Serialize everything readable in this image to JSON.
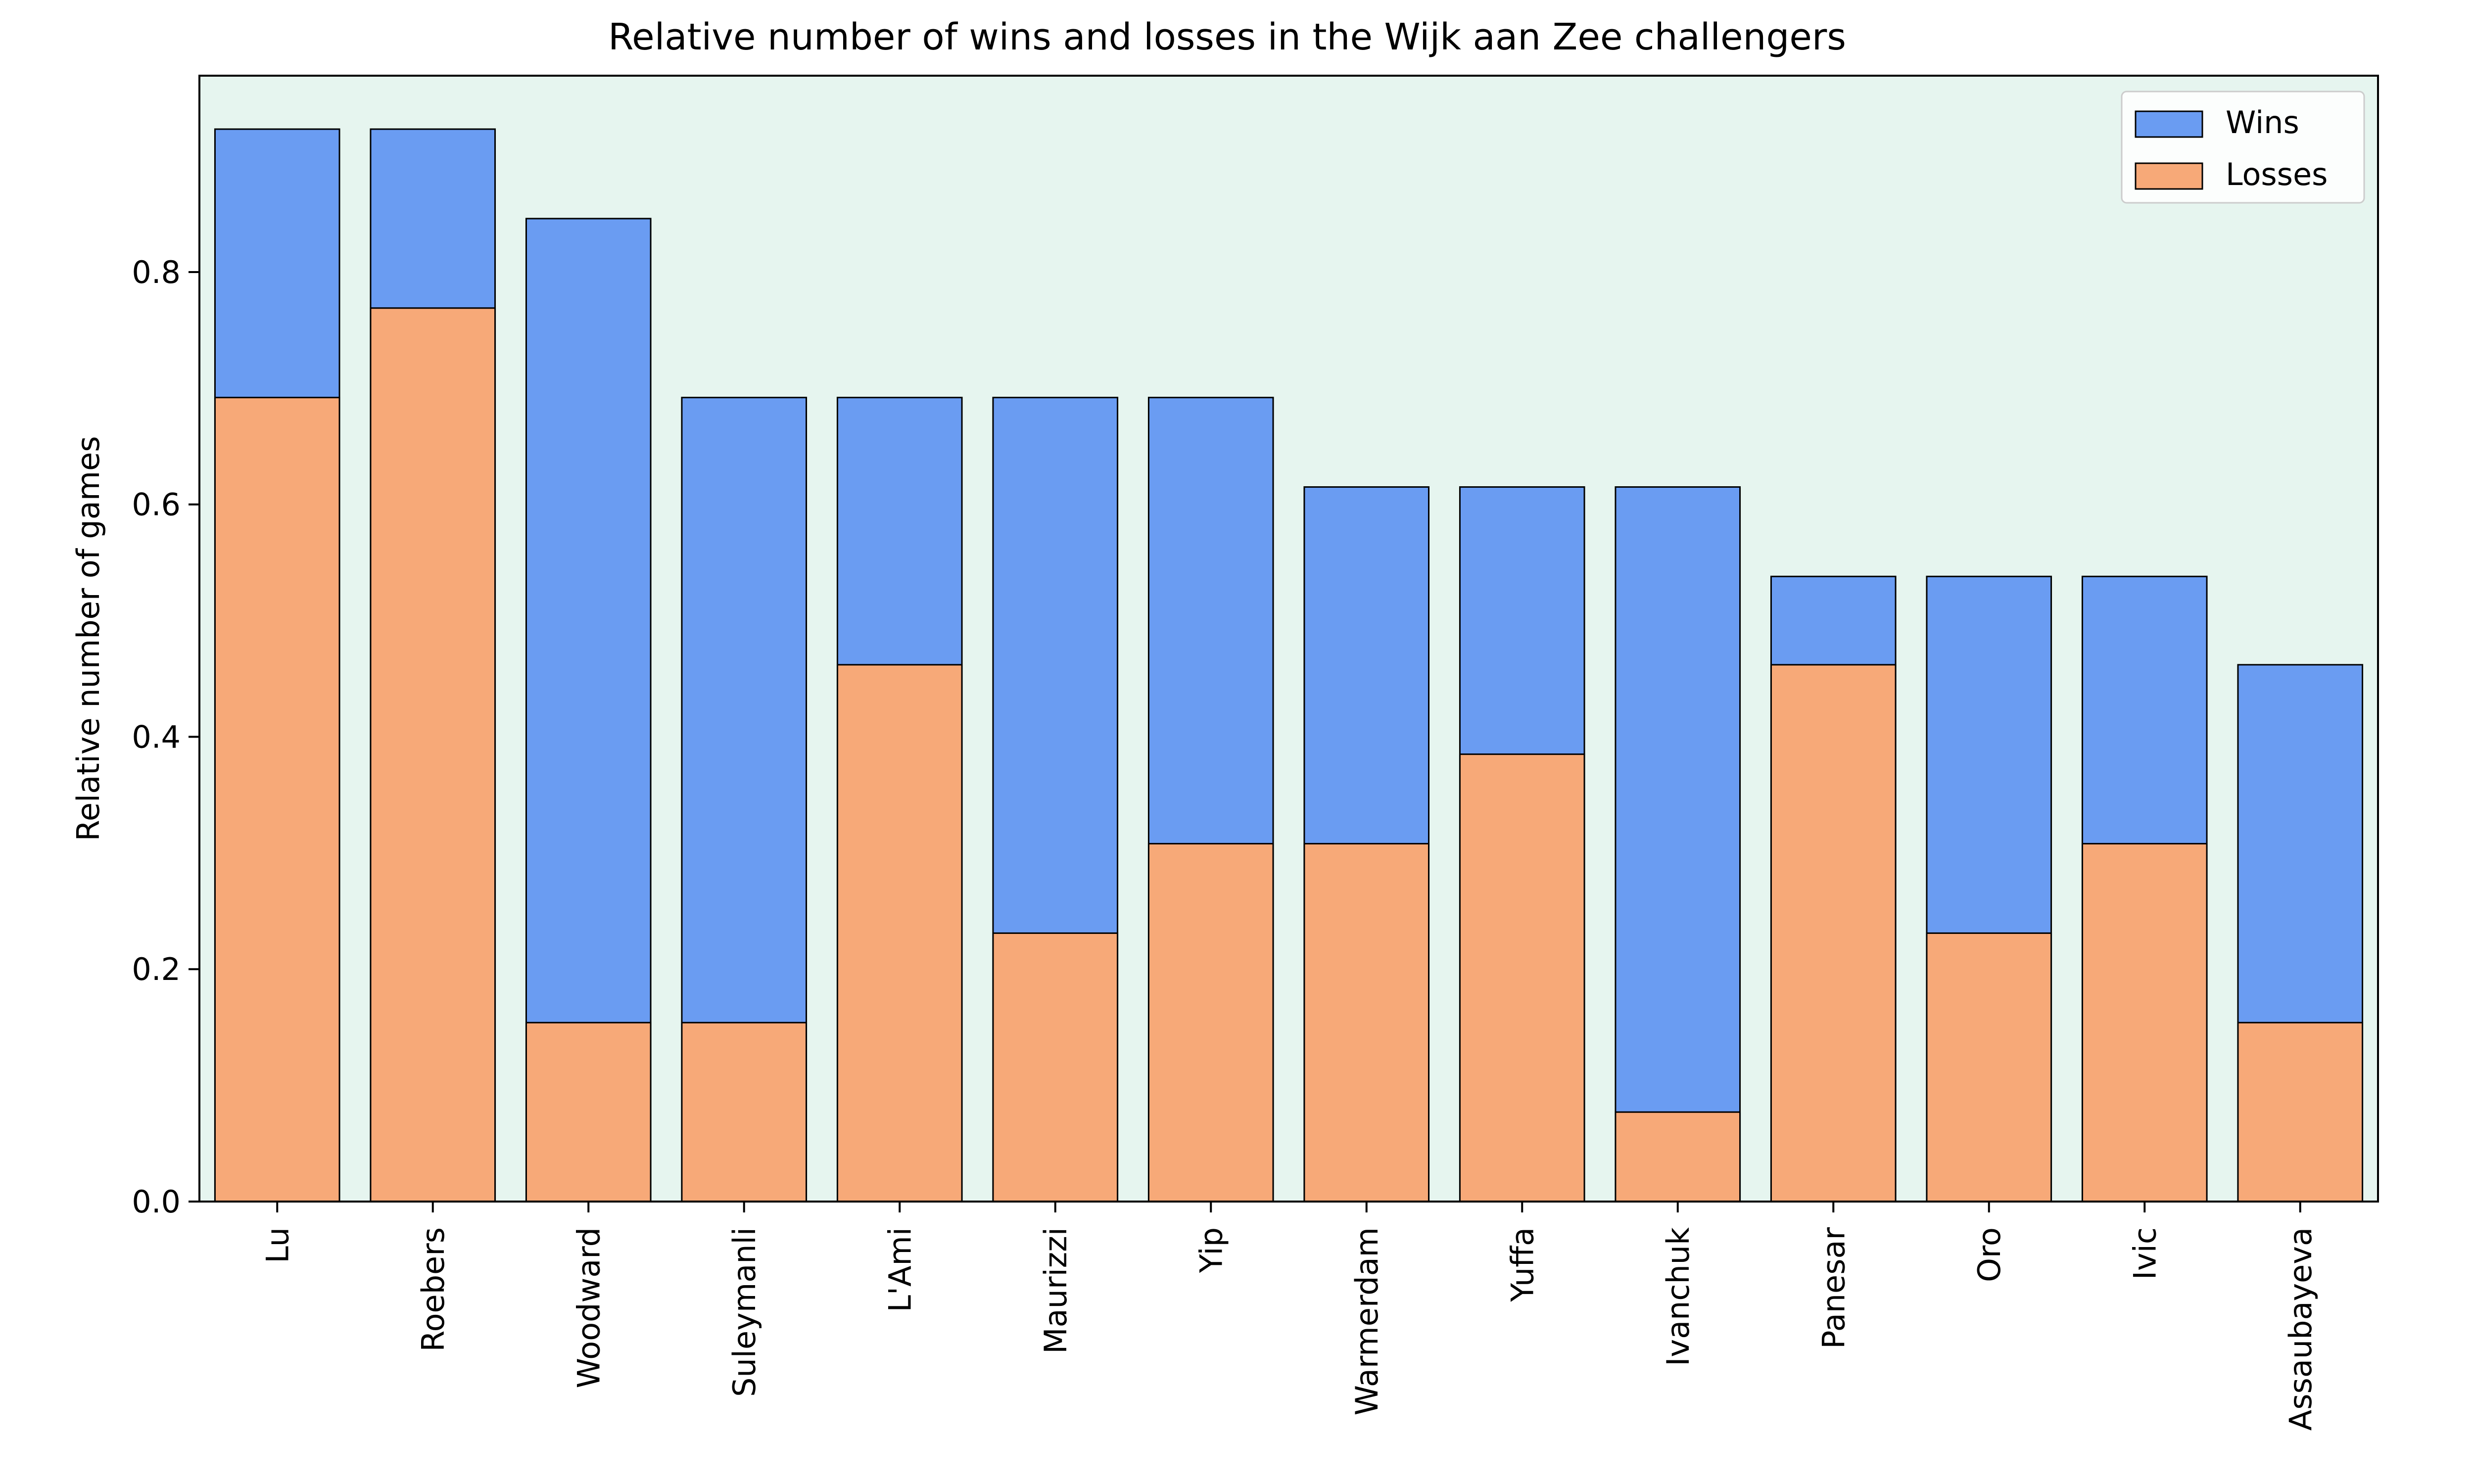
{
  "chart_data": {
    "type": "bar",
    "stacking": "overlay",
    "title": "Relative number of wins and losses in the Wijk aan Zee challengers",
    "xlabel": "",
    "ylabel": "Relative number of games",
    "ylim": [
      0,
      0.969
    ],
    "yticks": [
      "0.0",
      "0.2",
      "0.4",
      "0.6",
      "0.8"
    ],
    "grid": false,
    "legend_position": "top-right",
    "background_color": "#e6f5ef",
    "categories": [
      "Lu",
      "Roebers",
      "Woodward",
      "Suleymanli",
      "L'Ami",
      "Maurizzi",
      "Yip",
      "Warmerdam",
      "Yuffa",
      "Ivanchuk",
      "Panesar",
      "Oro",
      "Ivic",
      "Assaubayeva"
    ],
    "series": [
      {
        "name": "Wins",
        "color": "#6a9cf2",
        "values": [
          0.923,
          0.923,
          0.846,
          0.692,
          0.692,
          0.692,
          0.692,
          0.615,
          0.615,
          0.615,
          0.538,
          0.538,
          0.538,
          0.462
        ]
      },
      {
        "name": "Losses",
        "color": "#f7a978",
        "values": [
          0.692,
          0.769,
          0.154,
          0.154,
          0.462,
          0.231,
          0.308,
          0.308,
          0.385,
          0.077,
          0.462,
          0.231,
          0.308,
          0.154
        ]
      }
    ]
  }
}
